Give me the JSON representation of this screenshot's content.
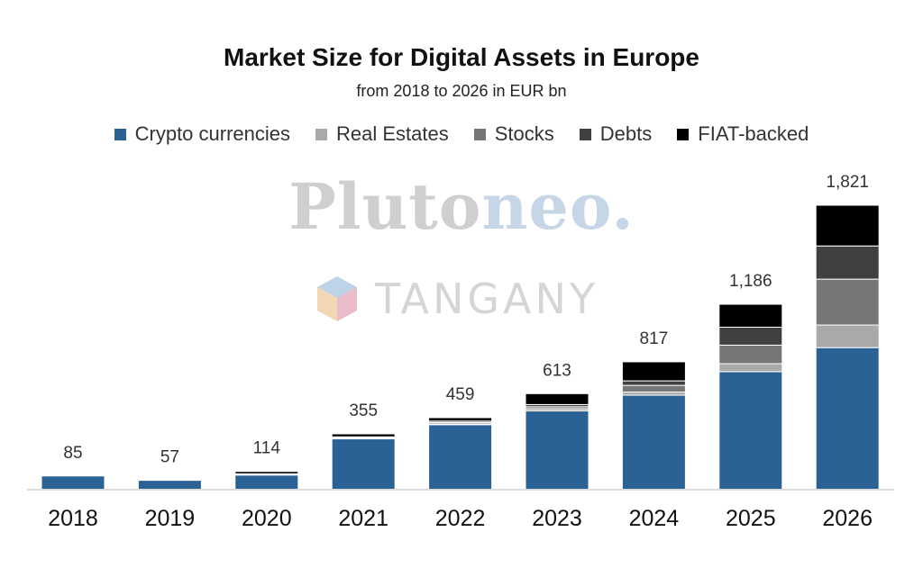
{
  "title": "Market Size for Digital Assets in Europe",
  "subtitle": "from 2018 to 2026 in EUR bn",
  "watermarks": {
    "pluto_part1": "Pluto",
    "pluto_part2": "neo.",
    "tangany": "TANGANY"
  },
  "chart_data": {
    "type": "bar",
    "stacked": true,
    "title": "Market Size for Digital Assets in Europe",
    "subtitle": "from 2018 to 2026 in EUR bn",
    "categories": [
      "2018",
      "2019",
      "2020",
      "2021",
      "2022",
      "2023",
      "2024",
      "2025",
      "2026"
    ],
    "totals": [
      "85",
      "57",
      "114",
      "355",
      "459",
      "613",
      "817",
      "1,186",
      "1,821"
    ],
    "series": [
      {
        "name": "Crypto currencies",
        "color": "#2b6295",
        "values": [
          85,
          57,
          91,
          323,
          414,
          502,
          603,
          754,
          908
        ]
      },
      {
        "name": "Real Estates",
        "color": "#a9a9a9",
        "values": [
          0,
          0,
          2,
          3,
          5,
          14,
          20,
          51,
          145
        ]
      },
      {
        "name": "Stocks",
        "color": "#767676",
        "values": [
          0,
          0,
          3,
          5,
          9,
          13,
          43,
          119,
          294
        ]
      },
      {
        "name": "Debts",
        "color": "#404040",
        "values": [
          0,
          0,
          3,
          5,
          9,
          14,
          29,
          115,
          213
        ]
      },
      {
        "name": "FIAT-backed",
        "color": "#000000",
        "values": [
          0,
          0,
          15,
          19,
          22,
          70,
          122,
          147,
          261
        ]
      }
    ],
    "ylim": [
      0,
      1821
    ],
    "legend_position": "top",
    "grid": false
  }
}
